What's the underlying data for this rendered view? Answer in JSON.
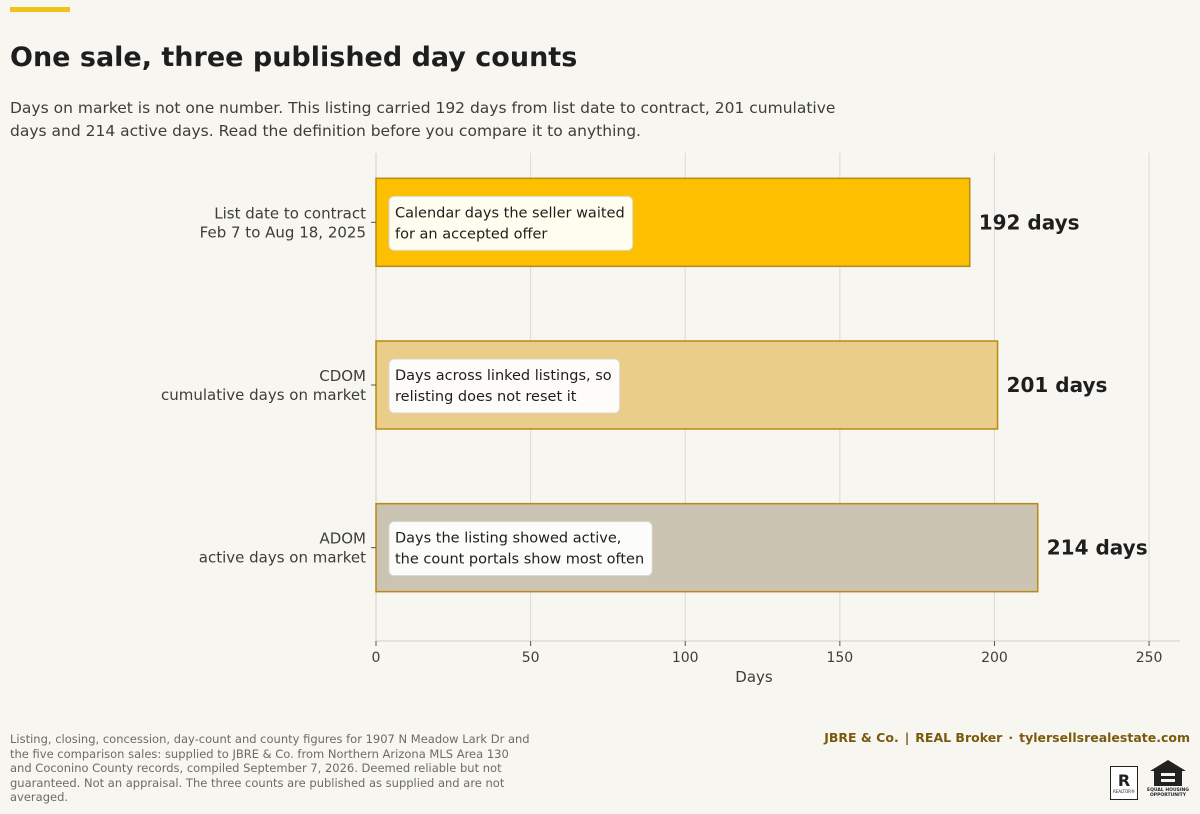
{
  "header": {
    "title": "One sale, three published day counts",
    "subtitle": "Days on market is not one number. This listing carried 192 days from list date to contract, 201 cumulative days and 214 active days. Read the definition before you compare it to anything."
  },
  "chart_data": {
    "type": "bar",
    "orientation": "horizontal",
    "categories": [
      [
        "List date to contract",
        "Feb 7 to Aug 18, 2025"
      ],
      [
        "CDOM",
        "cumulative days on market"
      ],
      [
        "ADOM",
        "active days on market"
      ]
    ],
    "values": [
      192,
      201,
      214
    ],
    "value_labels": [
      "192 days",
      "201 days",
      "214 days"
    ],
    "annotations": [
      [
        "Calendar days the seller waited",
        "for an accepted offer"
      ],
      [
        "Days across linked listings, so",
        "relisting does not reset it"
      ],
      [
        "Days the listing showed active,",
        "the count portals show most often"
      ]
    ],
    "bar_colors": [
      "#fdc000",
      "#e9cd88",
      "#cbc4b2"
    ],
    "bar_edge_color": "#b88a10",
    "xlabel": "Days",
    "xlim": [
      0,
      260
    ],
    "xticks": [
      0,
      50,
      100,
      150,
      200,
      250
    ],
    "grid": true
  },
  "footer": {
    "note": "Listing, closing, concession, day-count and county figures for 1907 N Meadow Lark Dr and the five comparison sales: supplied to JBRE & Co. from Northern Arizona MLS Area 130 and Coconino County records, compiled September 7, 2026. Deemed reliable but not guaranteed. Not an appraisal. The three counts are published as supplied and are not averaged.",
    "brand_left": "JBRE & Co.",
    "brand_sep1": "|",
    "brand_mid": "REAL Broker",
    "brand_sep2": "·",
    "brand_right": "tylersellsrealestate.com",
    "realtor_mark": "R",
    "realtor_text": "REALTOR®",
    "eho_text": "EQUAL HOUSING OPPORTUNITY"
  }
}
